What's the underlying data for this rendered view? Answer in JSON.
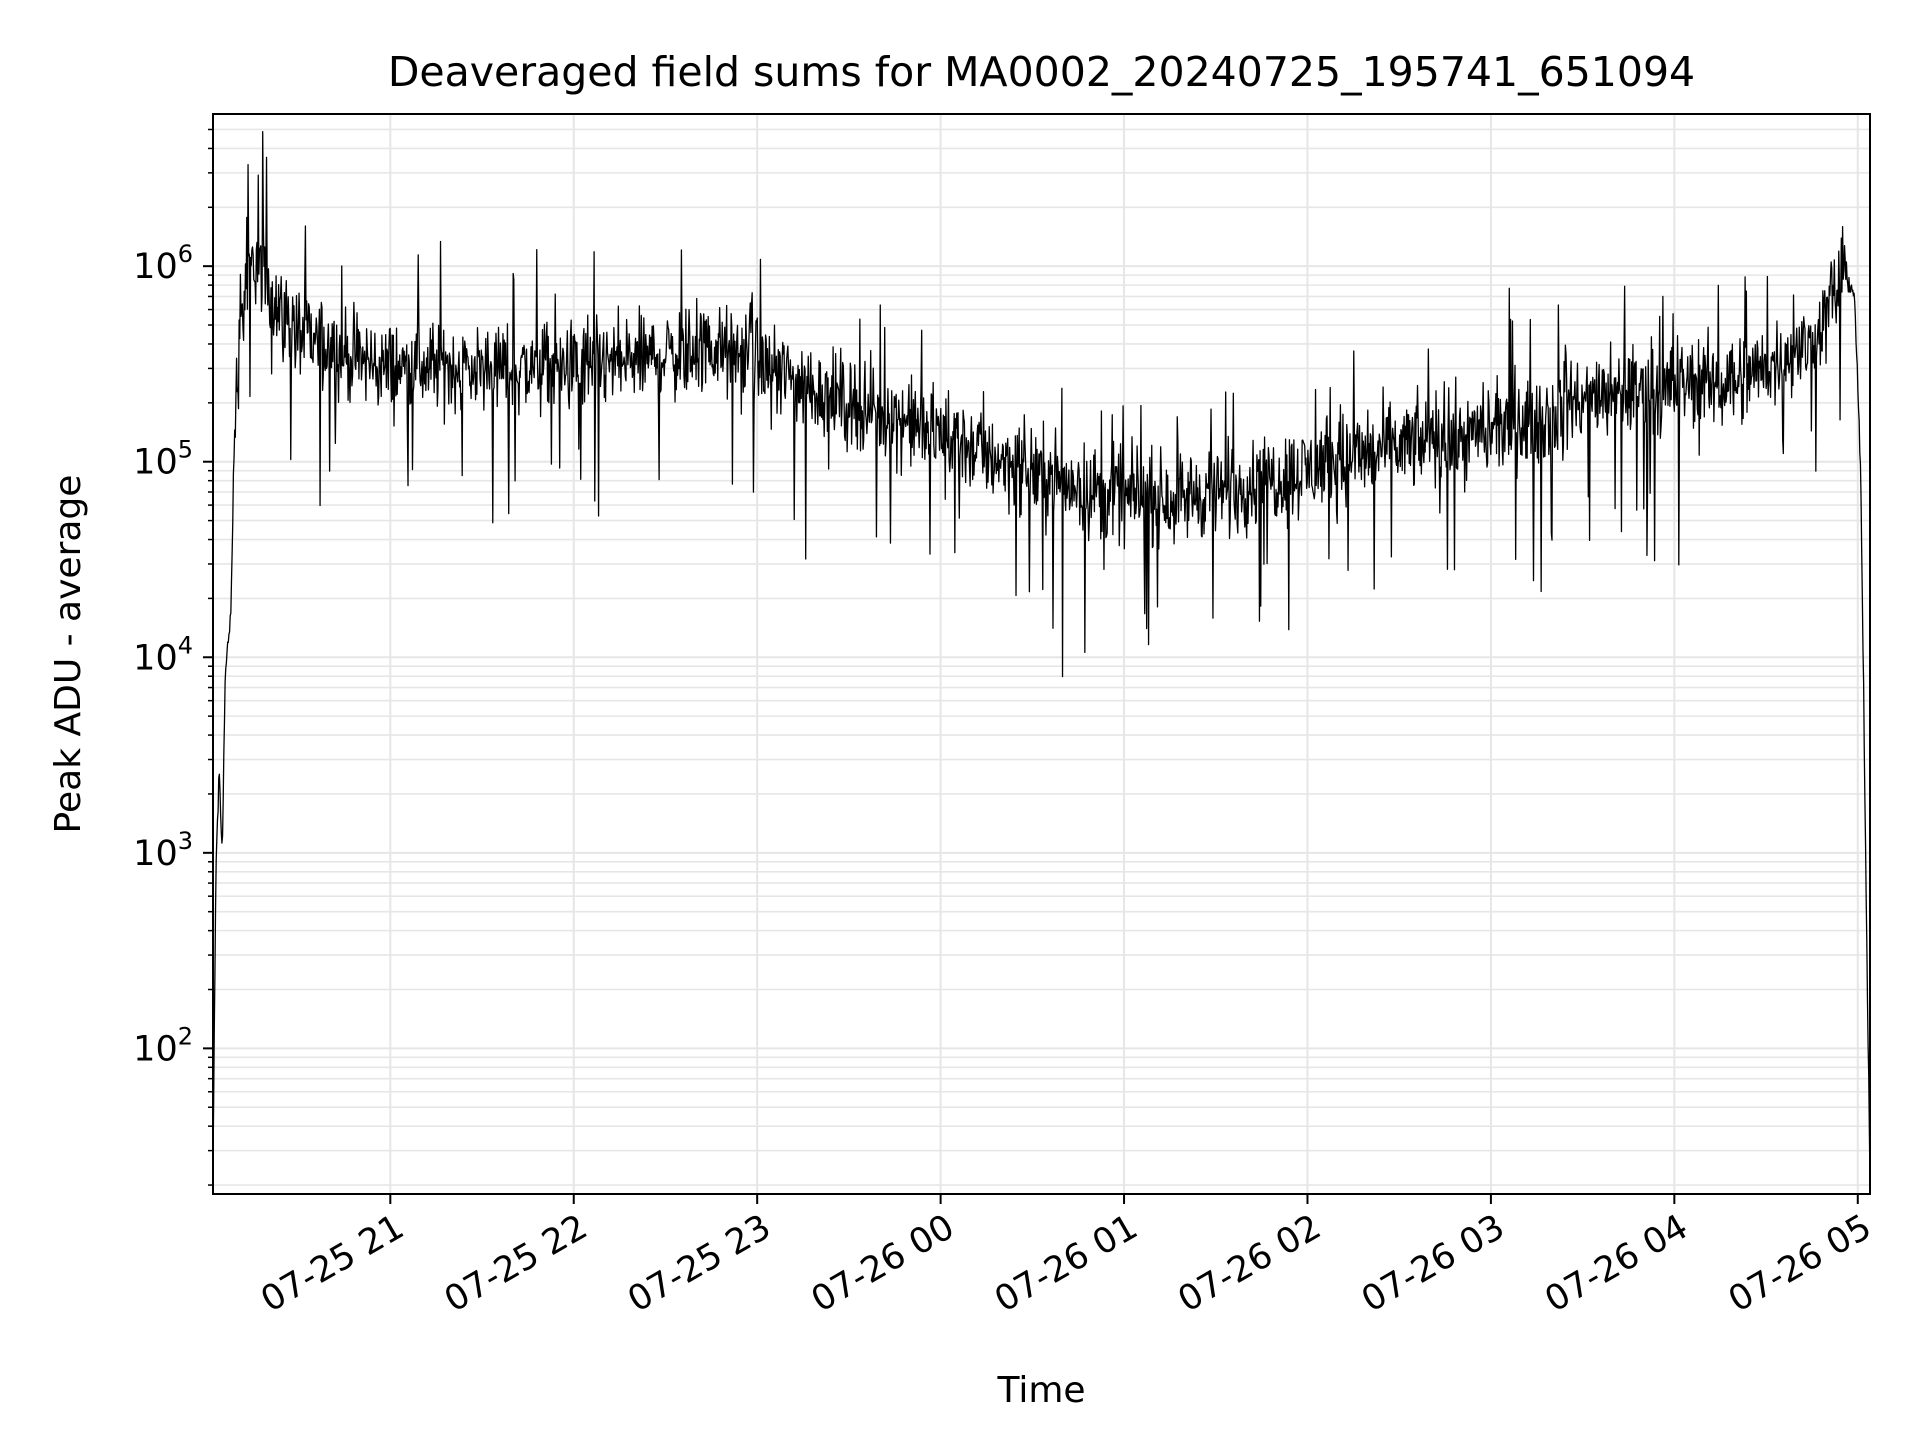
{
  "chart_data": {
    "type": "line",
    "title": "Deaveraged field sums for MA0002_20240725_195741_651094",
    "xlabel": "Time",
    "ylabel": "Peak ADU - average",
    "xscale": "time",
    "yscale": "log",
    "grid": true,
    "legend": "none",
    "line_color": "#000000",
    "grid_color": "#e6e6e6",
    "xlim": [
      "2024-07-25 20:02",
      "2024-07-26 05:04"
    ],
    "ylim": [
      18,
      6000000
    ],
    "x_ticks": [
      {
        "time": "2024-07-25 21:00",
        "label": "07-25 21"
      },
      {
        "time": "2024-07-25 22:00",
        "label": "07-25 22"
      },
      {
        "time": "2024-07-25 23:00",
        "label": "07-25 23"
      },
      {
        "time": "2024-07-26 00:00",
        "label": "07-26 00"
      },
      {
        "time": "2024-07-26 01:00",
        "label": "07-26 01"
      },
      {
        "time": "2024-07-26 02:00",
        "label": "07-26 02"
      },
      {
        "time": "2024-07-26 03:00",
        "label": "07-26 03"
      },
      {
        "time": "2024-07-26 04:00",
        "label": "07-26 04"
      },
      {
        "time": "2024-07-26 05:00",
        "label": "07-26 05"
      }
    ],
    "y_ticks": [
      {
        "value": 100,
        "base": "10",
        "exp": "2"
      },
      {
        "value": 1000,
        "base": "10",
        "exp": "3"
      },
      {
        "value": 10000,
        "base": "10",
        "exp": "4"
      },
      {
        "value": 100000,
        "base": "10",
        "exp": "5"
      },
      {
        "value": 1000000,
        "base": "10",
        "exp": "6"
      }
    ],
    "series": [
      {
        "x": [
          "2024-07-25 20:02",
          "2024-07-25 20:03",
          "2024-07-25 20:04",
          "2024-07-25 20:05",
          "2024-07-25 20:06",
          "2024-07-25 20:07",
          "2024-07-25 20:08",
          "2024-07-25 20:09",
          "2024-07-25 20:10",
          "2024-07-25 20:12",
          "2024-07-25 20:14",
          "2024-07-25 20:16",
          "2024-07-25 20:18",
          "2024-07-25 20:20",
          "2024-07-25 20:22",
          "2024-07-25 20:25",
          "2024-07-25 20:30",
          "2024-07-25 20:40",
          "2024-07-25 20:50",
          "2024-07-25 21:00",
          "2024-07-25 21:15",
          "2024-07-25 21:30",
          "2024-07-25 21:45",
          "2024-07-25 22:00",
          "2024-07-25 22:15",
          "2024-07-25 22:30",
          "2024-07-25 22:45",
          "2024-07-25 23:00",
          "2024-07-25 23:15",
          "2024-07-25 23:30",
          "2024-07-25 23:45",
          "2024-07-26 00:00",
          "2024-07-26 00:15",
          "2024-07-26 00:30",
          "2024-07-26 00:45",
          "2024-07-26 01:00",
          "2024-07-26 01:15",
          "2024-07-26 01:30",
          "2024-07-26 01:45",
          "2024-07-26 02:00",
          "2024-07-26 02:15",
          "2024-07-26 02:30",
          "2024-07-26 02:45",
          "2024-07-26 03:00",
          "2024-07-26 03:15",
          "2024-07-26 03:30",
          "2024-07-26 03:45",
          "2024-07-26 04:00",
          "2024-07-26 04:15",
          "2024-07-26 04:30",
          "2024-07-26 04:45",
          "2024-07-26 04:52",
          "2024-07-26 04:56",
          "2024-07-26 04:59",
          "2024-07-26 05:01",
          "2024-07-26 05:02",
          "2024-07-26 05:03",
          "2024-07-26 05:04"
        ],
        "y": [
          25,
          900,
          2500,
          1000,
          8000,
          12000,
          20000,
          140000,
          300000,
          650000,
          900000,
          1100000,
          1000000,
          850000,
          700000,
          550000,
          450000,
          380000,
          330000,
          300000,
          310000,
          300000,
          300000,
          300000,
          320000,
          350000,
          380000,
          320000,
          250000,
          200000,
          170000,
          140000,
          110000,
          90000,
          75000,
          65000,
          65000,
          70000,
          80000,
          90000,
          105000,
          120000,
          130000,
          140000,
          165000,
          200000,
          230000,
          250000,
          260000,
          300000,
          400000,
          700000,
          950000,
          700000,
          80000,
          5000,
          300,
          20
        ]
      }
    ]
  }
}
